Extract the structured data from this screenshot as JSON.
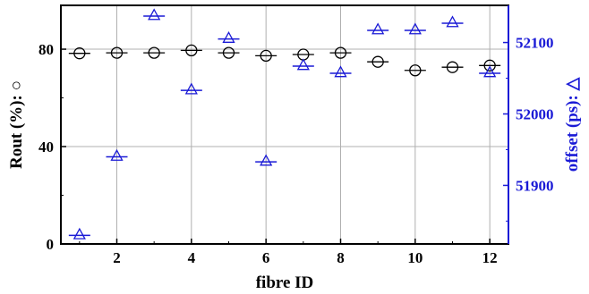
{
  "chart_data": {
    "type": "scatter",
    "xlabel": "fibre ID",
    "ylabel_left": "Rout (%): ○",
    "ylabel_right": "offset (ps): △",
    "xlim": [
      0.5,
      12.5
    ],
    "ylim_left": [
      0,
      98
    ],
    "ylim_right": [
      51818,
      52152
    ],
    "x_ticks": [
      2,
      4,
      6,
      8,
      10,
      12
    ],
    "y_left_ticks": [
      0,
      40,
      80
    ],
    "y_right_ticks": [
      51900,
      52000,
      52100
    ],
    "grid": true,
    "left_axis_color": "#000000",
    "right_axis_color": "#1a1ad6",
    "series": [
      {
        "marker": "circle",
        "axis": "left",
        "color": "#000000",
        "x": [
          1,
          2,
          3,
          4,
          5,
          6,
          7,
          8,
          9,
          10,
          11,
          12
        ],
        "y": [
          78.3,
          78.5,
          78.5,
          79.5,
          78.5,
          77.3,
          77.8,
          78.5,
          74.8,
          71.3,
          72.6,
          73.3
        ]
      },
      {
        "marker": "triangle",
        "axis": "right",
        "color": "#1a1ad6",
        "x": [
          1,
          2,
          3,
          4,
          5,
          6,
          7,
          8,
          9,
          10,
          11,
          12
        ],
        "y": [
          51830,
          51940,
          52137,
          52033,
          52105,
          51933,
          52067,
          52057,
          52117,
          52117,
          52127,
          52057
        ]
      }
    ]
  }
}
